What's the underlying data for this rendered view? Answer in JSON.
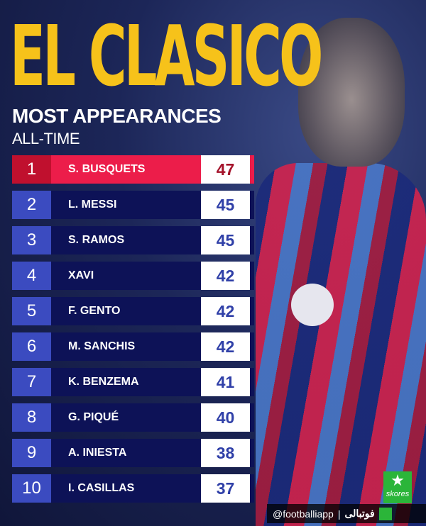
{
  "header": {
    "title": "EL CLASICO",
    "subtitle": "MOST APPEARANCES",
    "period": "ALL-TIME"
  },
  "colors": {
    "title": "#f6c21a",
    "highlight": "#ec1d4a",
    "navy": "#0d1257",
    "rank_bg": "#3b4bc0"
  },
  "rankings": [
    {
      "rank": "1",
      "name": "S. BUSQUETS",
      "value": "47"
    },
    {
      "rank": "2",
      "name": "L. MESSI",
      "value": "45"
    },
    {
      "rank": "3",
      "name": "S. RAMOS",
      "value": "45"
    },
    {
      "rank": "4",
      "name": "XAVI",
      "value": "42"
    },
    {
      "rank": "5",
      "name": "F. GENTO",
      "value": "42"
    },
    {
      "rank": "6",
      "name": "M. SANCHIS",
      "value": "42"
    },
    {
      "rank": "7",
      "name": "K. BENZEMA",
      "value": "41"
    },
    {
      "rank": "8",
      "name": "G. PIQUÉ",
      "value": "40"
    },
    {
      "rank": "9",
      "name": "A. INIESTA",
      "value": "38"
    },
    {
      "rank": "10",
      "name": "I. CASILLAS",
      "value": "37"
    }
  ],
  "watermark": {
    "skores": "skores",
    "handle": "@footballiapp",
    "separator": "|",
    "arabic": "فوتبالی"
  }
}
